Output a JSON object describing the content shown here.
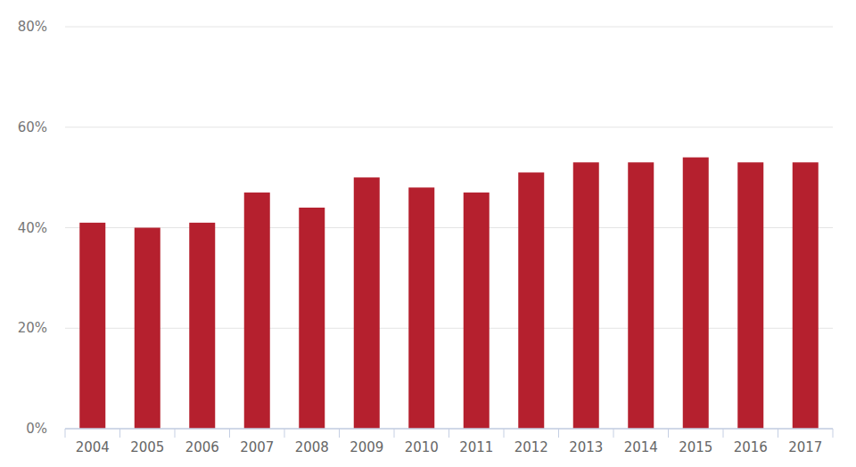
{
  "chart_data": {
    "type": "bar",
    "categories": [
      "2004",
      "2005",
      "2006",
      "2007",
      "2008",
      "2009",
      "2010",
      "2011",
      "2012",
      "2013",
      "2014",
      "2015",
      "2016",
      "2017"
    ],
    "values": [
      41,
      40,
      41,
      47,
      44,
      50,
      48,
      47,
      51,
      53,
      53,
      54,
      53,
      53
    ],
    "color": "#b5202e",
    "ylim": [
      0,
      80
    ],
    "yticks": [
      {
        "value": 0,
        "label": "0%"
      },
      {
        "value": 20,
        "label": "20%"
      },
      {
        "value": 40,
        "label": "40%"
      },
      {
        "value": 60,
        "label": "60%"
      },
      {
        "value": 80,
        "label": "80%"
      }
    ],
    "grid": true
  }
}
